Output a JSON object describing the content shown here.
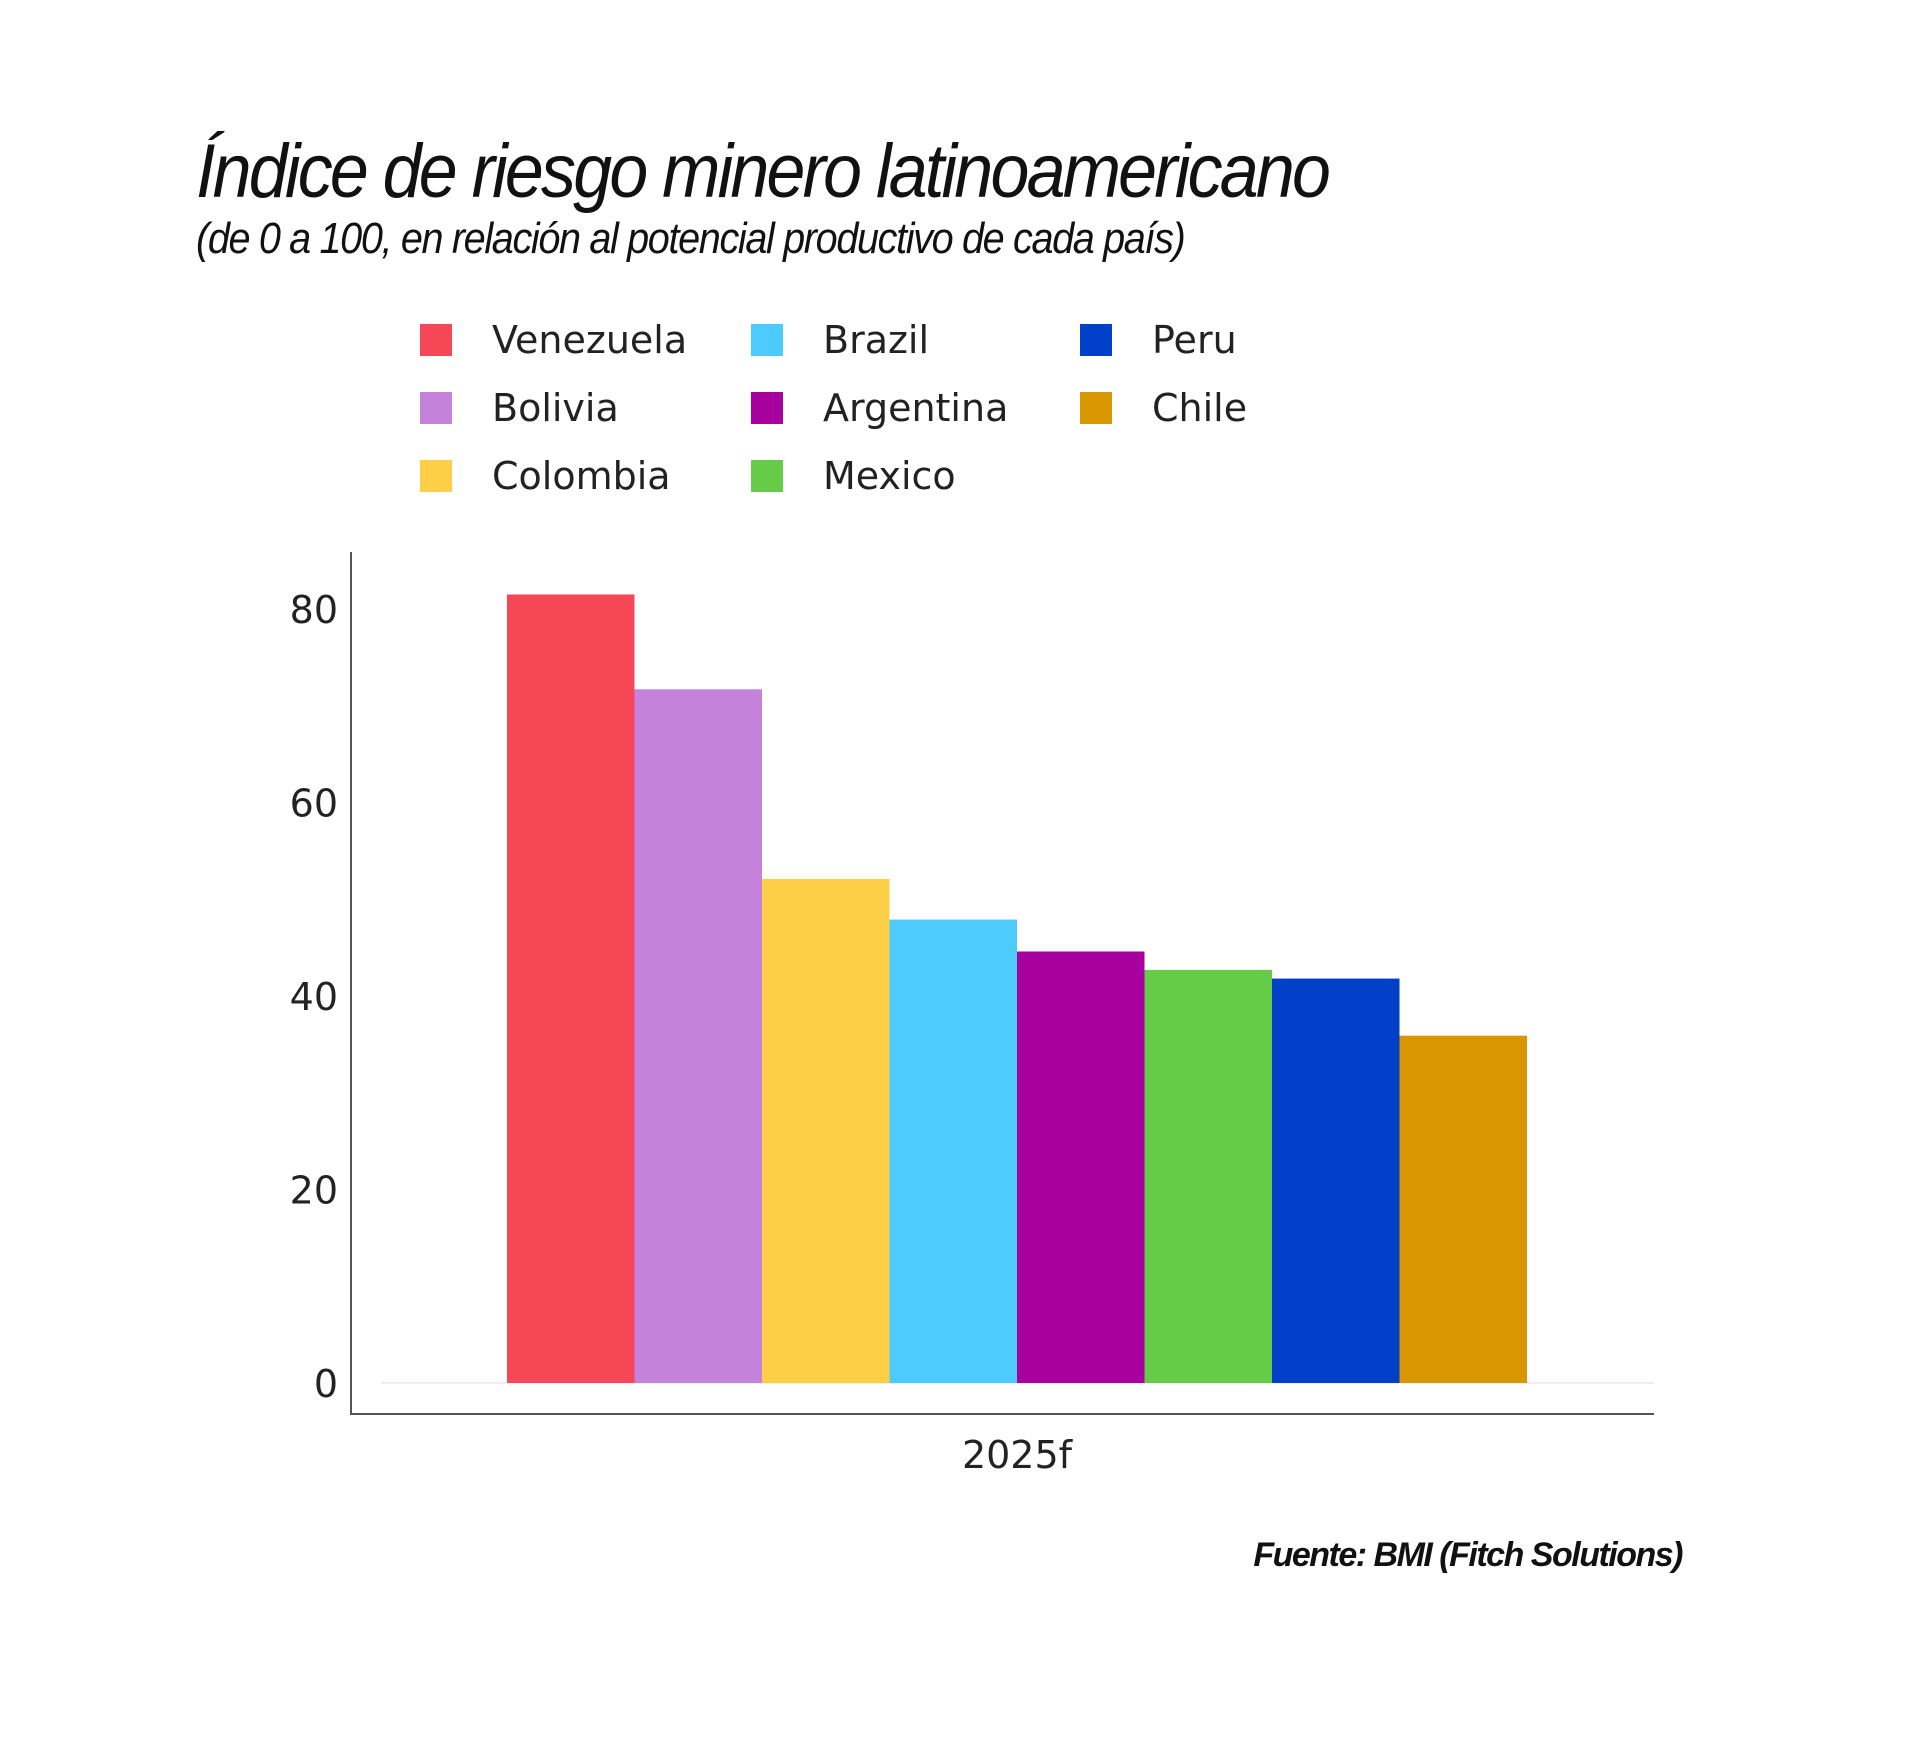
{
  "chart_data": {
    "type": "bar",
    "title": "Índice de riesgo minero latinoamericano",
    "subtitle": "(de 0 a 100, en relación al potencial productivo de cada país)",
    "categories": [
      "2025f"
    ],
    "series": [
      {
        "name": "Venezuela",
        "values": [
          81.5
        ],
        "color": "#f64757"
      },
      {
        "name": "Bolivia",
        "values": [
          71.7
        ],
        "color": "#c482da"
      },
      {
        "name": "Colombia",
        "values": [
          52.1
        ],
        "color": "#fdcf47"
      },
      {
        "name": "Brazil",
        "values": [
          47.9
        ],
        "color": "#4ccbfc"
      },
      {
        "name": "Argentina",
        "values": [
          44.6
        ],
        "color": "#a8009e"
      },
      {
        "name": "Mexico",
        "values": [
          42.7
        ],
        "color": "#66cb46"
      },
      {
        "name": "Peru",
        "values": [
          41.8
        ],
        "color": "#0040c8"
      },
      {
        "name": "Chile",
        "values": [
          35.9
        ],
        "color": "#d89700"
      }
    ],
    "legend_order": [
      "Venezuela",
      "Bolivia",
      "Colombia",
      "Brazil",
      "Argentina",
      "Mexico",
      "Peru",
      "Chile"
    ],
    "yticks": [
      0,
      20,
      40,
      60,
      80
    ],
    "ylim": [
      0,
      86
    ],
    "grid": false,
    "legend_position": "top",
    "source": "Fuente: BMI (Fitch Solutions)"
  }
}
